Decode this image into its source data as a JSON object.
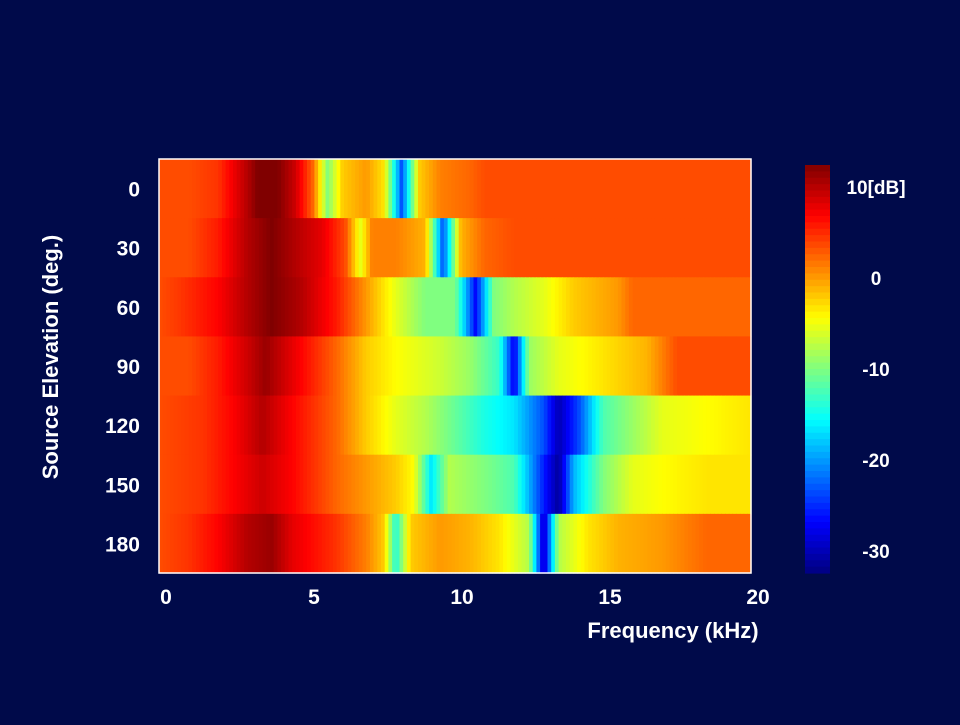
{
  "chart_data": {
    "type": "heatmap",
    "xlabel": "Frequency (kHz)",
    "ylabel": "Source Elevation (deg.)",
    "xlim": [
      0,
      20
    ],
    "x_ticks": [
      "0",
      "5",
      "10",
      "15",
      "20"
    ],
    "x_tick_values": [
      0,
      5,
      10,
      15,
      20
    ],
    "y_ticks": [
      "0",
      "30",
      "60",
      "90",
      "120",
      "150",
      "180"
    ],
    "rows": [
      0,
      30,
      60,
      90,
      120,
      150,
      180
    ],
    "colorbar": {
      "range": [
        -30,
        10
      ],
      "unit_label": "10[dB]",
      "tick_labels": [
        "10[dB]",
        "0",
        "-10",
        "-20",
        "-30"
      ],
      "tick_values": [
        10,
        0,
        -10,
        -20,
        -30
      ],
      "colormap": "jet"
    },
    "profiles": [
      {
        "elevation": 0,
        "points": [
          [
            0,
            2
          ],
          [
            1,
            2
          ],
          [
            2,
            3
          ],
          [
            3,
            8
          ],
          [
            3.5,
            11
          ],
          [
            4,
            10
          ],
          [
            4.6,
            7
          ],
          [
            5.2,
            1
          ],
          [
            5.7,
            -10
          ],
          [
            6.2,
            -3
          ],
          [
            7,
            -1
          ],
          [
            7.6,
            -4
          ],
          [
            8.2,
            -22
          ],
          [
            8.8,
            -3
          ],
          [
            9.5,
            0
          ],
          [
            10.5,
            1
          ],
          [
            11,
            2
          ],
          [
            20,
            2
          ]
        ]
      },
      {
        "elevation": 30,
        "points": [
          [
            0,
            2
          ],
          [
            1,
            2
          ],
          [
            2,
            4
          ],
          [
            3,
            8
          ],
          [
            3.8,
            10
          ],
          [
            4.6,
            8
          ],
          [
            5.5,
            6
          ],
          [
            6.3,
            2
          ],
          [
            6.8,
            -6
          ],
          [
            7.2,
            0
          ],
          [
            8,
            0
          ],
          [
            9,
            -2
          ],
          [
            9.6,
            -22
          ],
          [
            10.2,
            -2
          ],
          [
            11,
            1
          ],
          [
            12,
            2
          ],
          [
            20,
            2
          ]
        ]
      },
      {
        "elevation": 60,
        "points": [
          [
            0,
            2
          ],
          [
            0.8,
            3
          ],
          [
            2,
            5
          ],
          [
            3,
            8
          ],
          [
            3.8,
            10
          ],
          [
            4.8,
            8
          ],
          [
            6,
            4
          ],
          [
            7,
            -1
          ],
          [
            8,
            -6
          ],
          [
            9,
            -10
          ],
          [
            10,
            -10
          ],
          [
            10.7,
            -25
          ],
          [
            11.3,
            -10
          ],
          [
            12,
            -8
          ],
          [
            13,
            -6
          ],
          [
            14,
            -3
          ],
          [
            15.5,
            -1
          ],
          [
            16,
            1
          ],
          [
            20,
            1
          ]
        ]
      },
      {
        "elevation": 90,
        "points": [
          [
            0,
            2
          ],
          [
            1,
            2
          ],
          [
            2,
            4
          ],
          [
            3,
            7
          ],
          [
            3.6,
            9
          ],
          [
            4.5,
            6
          ],
          [
            6,
            1
          ],
          [
            7,
            -3
          ],
          [
            8,
            -5
          ],
          [
            9.5,
            -7
          ],
          [
            10.5,
            -9
          ],
          [
            11.5,
            -13
          ],
          [
            12,
            -26
          ],
          [
            12.5,
            -9
          ],
          [
            13.5,
            -6
          ],
          [
            15,
            -4
          ],
          [
            16.5,
            -2
          ],
          [
            17.5,
            2
          ],
          [
            20,
            2
          ]
        ]
      },
      {
        "elevation": 120,
        "points": [
          [
            0,
            2
          ],
          [
            1.5,
            3
          ],
          [
            2.5,
            5
          ],
          [
            3.5,
            8
          ],
          [
            4.5,
            5
          ],
          [
            6,
            1
          ],
          [
            7,
            -3
          ],
          [
            8,
            -6
          ],
          [
            9,
            -8
          ],
          [
            10,
            -11
          ],
          [
            11,
            -14
          ],
          [
            12,
            -16
          ],
          [
            13,
            -22
          ],
          [
            13.5,
            -28
          ],
          [
            14.2,
            -22
          ],
          [
            15,
            -12
          ],
          [
            16,
            -9
          ],
          [
            17,
            -6
          ],
          [
            18.5,
            -5
          ],
          [
            20,
            -4
          ]
        ]
      },
      {
        "elevation": 150,
        "points": [
          [
            0,
            2
          ],
          [
            1.5,
            3
          ],
          [
            2.5,
            5
          ],
          [
            3.5,
            7
          ],
          [
            4.5,
            5
          ],
          [
            6,
            1
          ],
          [
            7,
            -1
          ],
          [
            8,
            -3
          ],
          [
            8.6,
            -5
          ],
          [
            9.2,
            -16
          ],
          [
            9.8,
            -8
          ],
          [
            11,
            -10
          ],
          [
            12,
            -12
          ],
          [
            13,
            -24
          ],
          [
            13.5,
            -29
          ],
          [
            14,
            -18
          ],
          [
            15,
            -10
          ],
          [
            16,
            -6
          ],
          [
            17,
            -5
          ],
          [
            18.5,
            -4
          ],
          [
            20,
            -4
          ]
        ]
      },
      {
        "elevation": 180,
        "points": [
          [
            0,
            2
          ],
          [
            1,
            3
          ],
          [
            2,
            5
          ],
          [
            3,
            8
          ],
          [
            3.8,
            9
          ],
          [
            4.5,
            6
          ],
          [
            6,
            3
          ],
          [
            7,
            0
          ],
          [
            7.6,
            -3
          ],
          [
            8,
            -14
          ],
          [
            8.5,
            -3
          ],
          [
            9.5,
            -1
          ],
          [
            10.5,
            -2
          ],
          [
            11.5,
            -4
          ],
          [
            12.5,
            -8
          ],
          [
            13,
            -28
          ],
          [
            13.5,
            -8
          ],
          [
            14.5,
            -4
          ],
          [
            15.5,
            -2
          ],
          [
            17,
            -1
          ],
          [
            18.5,
            1
          ],
          [
            20,
            1
          ]
        ]
      }
    ]
  }
}
